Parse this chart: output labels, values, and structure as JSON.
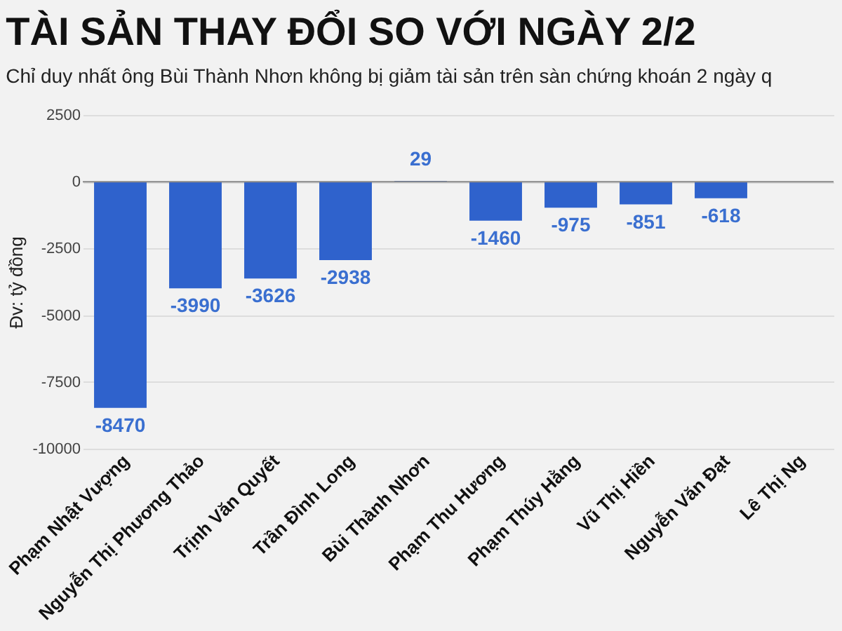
{
  "chart_data": {
    "type": "bar",
    "title": "TÀI SẢN THAY ĐỔI SO VỚI NGÀY 2/2",
    "subtitle": "Chỉ duy nhất ông Bùi Thành Nhơn không bị giảm tài sản trên sàn chứng khoán 2 ngày q",
    "ylabel": "Đv: tỷ đồng",
    "categories": [
      "Phạm Nhật Vượng",
      "Nguyễn Thị Phương Thảo",
      "Trịnh Văn Quyết",
      "Trần Đình Long",
      "Bùi Thành Nhơn",
      "Phạm Thu Hương",
      "Phạm Thúy Hằng",
      "Vũ Thị Hiền",
      "Nguyễn Văn Đạt",
      "Lê Thị Ng"
    ],
    "values": [
      -8470,
      -3990,
      -3626,
      -2938,
      29,
      -1460,
      -975,
      -851,
      -618,
      null
    ],
    "color": "#2f62cc",
    "ylim": [
      -10000,
      2500
    ],
    "yticks": [
      2500,
      0,
      -2500,
      -5000,
      -7500,
      -10000
    ],
    "grid": "y",
    "data_labels": true
  }
}
